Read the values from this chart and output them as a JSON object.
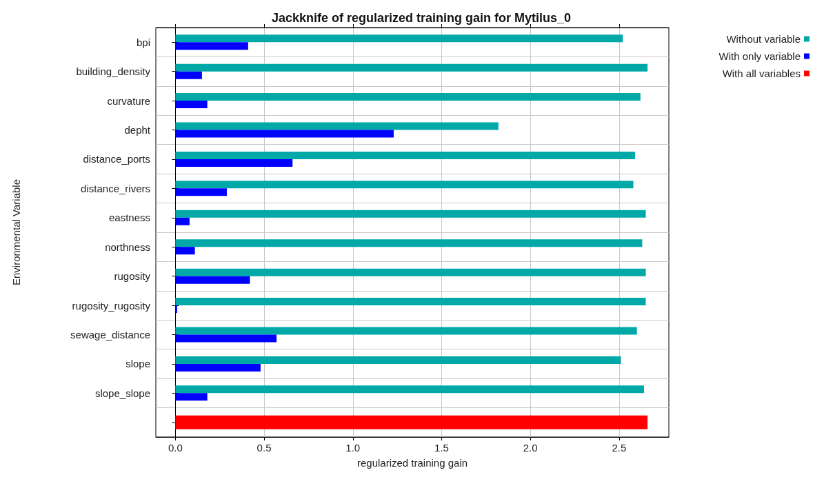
{
  "chart_data": {
    "type": "bar",
    "orientation": "horizontal",
    "title": "Jackknife of regularized training gain for Mytilus_0",
    "xlabel": "regularized training gain",
    "ylabel": "Environmental Variable",
    "categories": [
      "bpi",
      "building_density",
      "curvature",
      "depht",
      "distance_ports",
      "distance_rivers",
      "eastness",
      "northness",
      "rugosity",
      "rugosity_rugosity",
      "sewage_distance",
      "slope",
      "slope_slope",
      null
    ],
    "series": [
      {
        "name": "Without variable",
        "color": "#00a8a8",
        "values": [
          2.52,
          2.66,
          2.62,
          1.82,
          2.59,
          2.58,
          2.65,
          2.63,
          2.65,
          2.65,
          2.6,
          2.51,
          2.64,
          null
        ]
      },
      {
        "name": "With only variable",
        "color": "#0000ff",
        "values": [
          0.41,
          0.15,
          0.18,
          1.23,
          0.66,
          0.29,
          0.08,
          0.11,
          0.42,
          0.01,
          0.57,
          0.48,
          0.18,
          null
        ]
      },
      {
        "name": "With all variables",
        "color": "#ff0000",
        "values": [
          null,
          null,
          null,
          null,
          null,
          null,
          null,
          null,
          null,
          null,
          null,
          null,
          null,
          2.66
        ]
      }
    ],
    "xlim": [
      -0.11,
      2.78
    ],
    "xticks": [
      {
        "value": 0,
        "label": "0.0"
      },
      {
        "value": 0.5,
        "label": "0.5"
      },
      {
        "value": 1,
        "label": "1.0"
      },
      {
        "value": 1.5,
        "label": "1.5"
      },
      {
        "value": 2,
        "label": "2.0"
      },
      {
        "value": 2.5,
        "label": "2.5"
      }
    ],
    "grid": true,
    "legend": "top right"
  }
}
